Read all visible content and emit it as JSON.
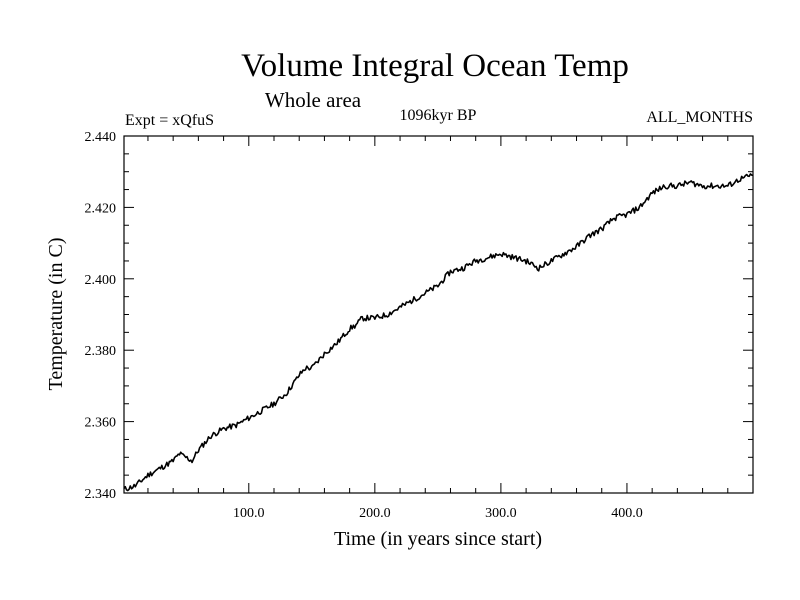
{
  "chart_data": {
    "type": "line",
    "title": "Volume Integral Ocean Temp",
    "subtitle": "Whole area",
    "left_label": "Expt = xQfuS",
    "center_label": "1096kyr BP",
    "right_label": "ALL_MONTHS",
    "xlabel": "Time (in years since start)",
    "ylabel": "Temperature (in C)",
    "xlim": [
      1,
      500
    ],
    "ylim": [
      2.34,
      2.44
    ],
    "xticks": [
      100,
      200,
      300,
      400
    ],
    "xtick_labels": [
      "100.0",
      "200.0",
      "300.0",
      "400.0"
    ],
    "yticks": [
      2.34,
      2.36,
      2.38,
      2.4,
      2.42,
      2.44
    ],
    "ytick_labels": [
      "2.340",
      "2.360",
      "2.380",
      "2.400",
      "2.420",
      "2.440"
    ],
    "grid": false,
    "series": [
      {
        "name": "Volume Integral Ocean Temp",
        "x": [
          1,
          10,
          20,
          30,
          40,
          45,
          50,
          55,
          60,
          70,
          80,
          90,
          100,
          110,
          120,
          130,
          140,
          145,
          150,
          160,
          170,
          180,
          185,
          190,
          200,
          210,
          220,
          230,
          240,
          250,
          260,
          270,
          280,
          290,
          300,
          310,
          320,
          330,
          340,
          350,
          360,
          370,
          380,
          390,
          400,
          410,
          420,
          430,
          440,
          450,
          460,
          470,
          480,
          490,
          500
        ],
        "values": [
          2.341,
          2.342,
          2.345,
          2.347,
          2.349,
          2.351,
          2.35,
          2.349,
          2.352,
          2.356,
          2.358,
          2.359,
          2.361,
          2.363,
          2.365,
          2.368,
          2.373,
          2.375,
          2.375,
          2.379,
          2.382,
          2.386,
          2.387,
          2.389,
          2.389,
          2.39,
          2.392,
          2.394,
          2.396,
          2.398,
          2.402,
          2.403,
          2.405,
          2.406,
          2.407,
          2.406,
          2.405,
          2.403,
          2.405,
          2.407,
          2.409,
          2.412,
          2.414,
          2.417,
          2.418,
          2.42,
          2.424,
          2.426,
          2.426,
          2.427,
          2.426,
          2.426,
          2.426,
          2.428,
          2.429
        ]
      }
    ]
  }
}
